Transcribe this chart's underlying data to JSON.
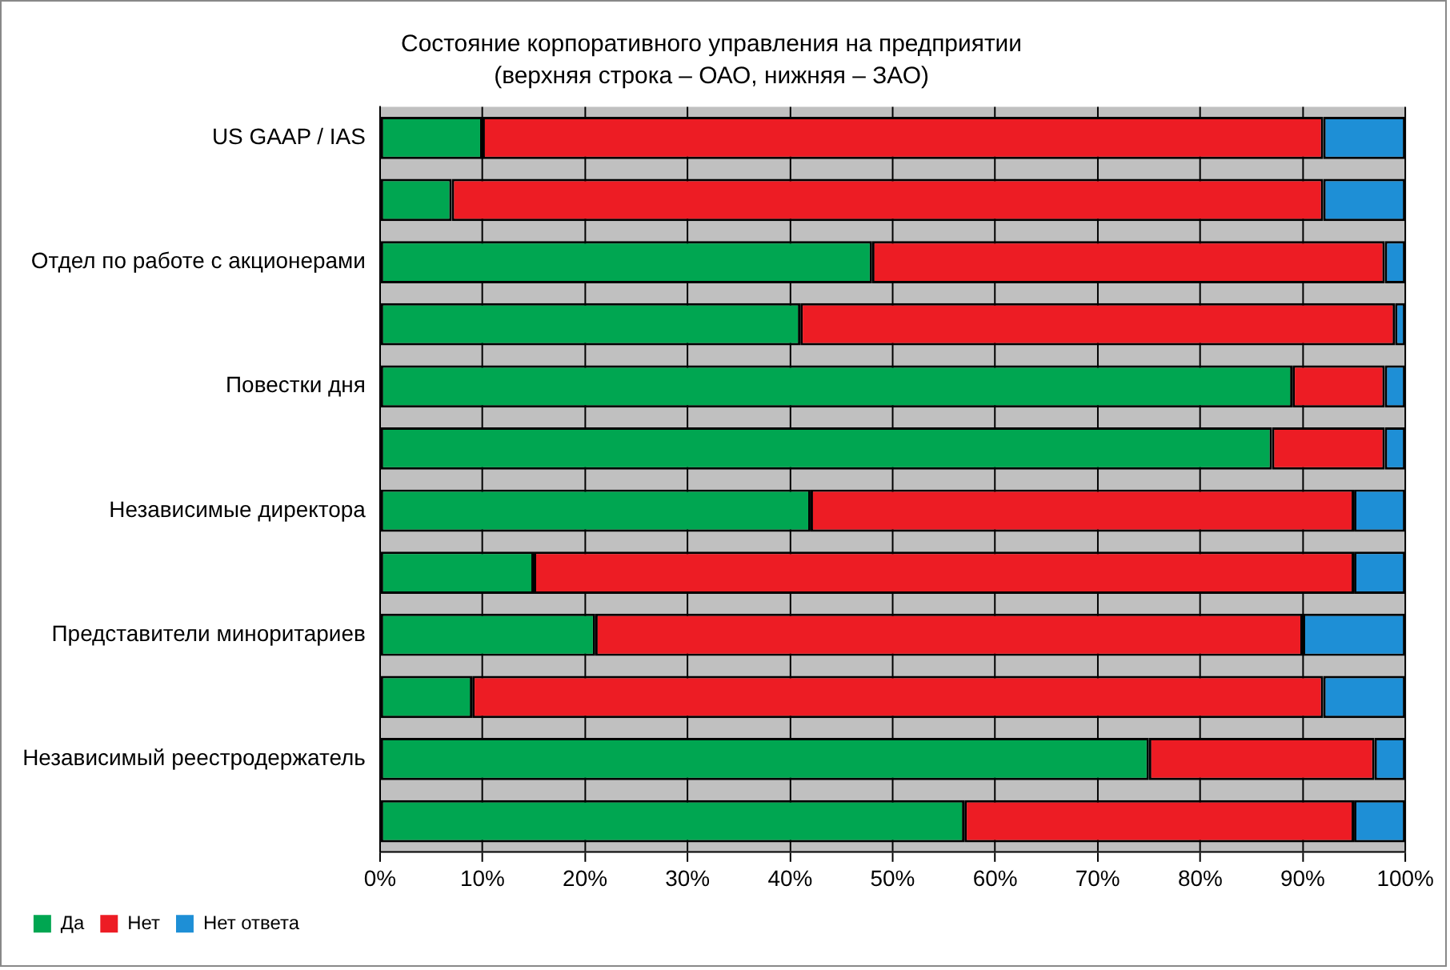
{
  "chart_data": {
    "type": "bar",
    "orientation": "horizontal",
    "stacked": true,
    "title": "Состояние корпоративного управления на предприятии",
    "subtitle": "(верхняя строка – ОАО, нижняя – ЗАО)",
    "categories": [
      "US GAAP / IAS",
      null,
      "Отдел по работе с акционерами",
      null,
      "Повестки дня",
      null,
      "Независимые директора",
      null,
      "Представители миноритариев",
      null,
      "Независимый реестродержатель",
      null
    ],
    "series": [
      {
        "name": "Да",
        "color": "#00a651",
        "values": [
          10,
          7,
          48,
          41,
          89,
          87,
          42,
          15,
          21,
          9,
          75,
          57
        ]
      },
      {
        "name": "Нет",
        "color": "#ed1c24",
        "values": [
          82,
          85,
          50,
          58,
          9,
          11,
          53,
          80,
          69,
          83,
          22,
          38
        ]
      },
      {
        "name": "Нет ответа",
        "color": "#1e8fd6",
        "values": [
          8,
          8,
          2,
          1,
          2,
          2,
          5,
          5,
          10,
          8,
          3,
          5
        ]
      }
    ],
    "xlim": [
      0,
      100
    ],
    "xticks": [
      {
        "value": 0,
        "label": "0%"
      },
      {
        "value": 10,
        "label": "10%"
      },
      {
        "value": 20,
        "label": "20%"
      },
      {
        "value": 30,
        "label": "30%"
      },
      {
        "value": 40,
        "label": "40%"
      },
      {
        "value": 50,
        "label": "50%"
      },
      {
        "value": 60,
        "label": "60%"
      },
      {
        "value": 70,
        "label": "70%"
      },
      {
        "value": 80,
        "label": "80%"
      },
      {
        "value": 90,
        "label": "90%"
      },
      {
        "value": 100,
        "label": "100%"
      }
    ],
    "grid": "x",
    "legend": "bottom left"
  }
}
